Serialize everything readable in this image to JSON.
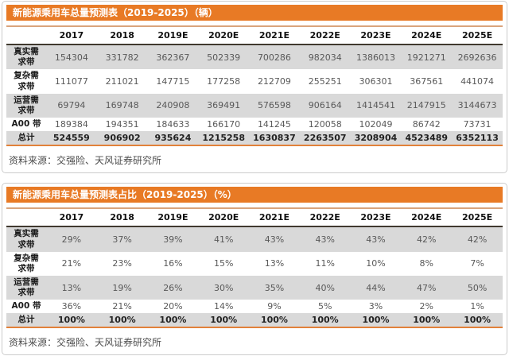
{
  "colors": {
    "accent": "#e87a25",
    "title_text": "#ffffff",
    "stripe": "#d9d9d9",
    "header_top_line": "#d9a47c",
    "header_bottom_line": "#40392f",
    "total_underline": "#e2813a",
    "value_text": "#595959",
    "source_text": "#4d4d4d"
  },
  "tables": [
    {
      "title": "新能源乘用车总量预测表（2019-2025）（辆）",
      "columns": [
        "2017",
        "2018",
        "2019E",
        "2020E",
        "2021E",
        "2022E",
        "2023E",
        "2024E",
        "2025E"
      ],
      "rows": [
        {
          "label": "真实需\n求带",
          "values": [
            "154304",
            "331782",
            "362367",
            "502339",
            "700286",
            "982034",
            "1386013",
            "1921271",
            "2692636"
          ]
        },
        {
          "label": "复杂需\n求带",
          "values": [
            "111077",
            "211021",
            "147715",
            "177258",
            "212709",
            "255251",
            "306301",
            "367561",
            "441074"
          ]
        },
        {
          "label": "运营需\n求带",
          "values": [
            "69794",
            "169748",
            "240908",
            "369491",
            "576598",
            "906164",
            "1414541",
            "2147915",
            "3144673"
          ]
        },
        {
          "label": "A00 带",
          "values": [
            "189384",
            "194351",
            "184633",
            "166170",
            "141245",
            "120058",
            "102049",
            "86742",
            "73731"
          ]
        },
        {
          "label": "总计",
          "is_total": true,
          "values": [
            "524559",
            "906902",
            "935624",
            "1215258",
            "1630837",
            "2263507",
            "3208904",
            "4523489",
            "6352113"
          ]
        }
      ],
      "source": "资料来源：交强险、天风证券研究所"
    },
    {
      "title": "新能源乘用车总量预测表占比（2019-2025）（%）",
      "columns": [
        "2017",
        "2018",
        "2019E",
        "2020E",
        "2021E",
        "2022E",
        "2023E",
        "2024E",
        "2025E"
      ],
      "rows": [
        {
          "label": "真实需\n求带",
          "values": [
            "29%",
            "37%",
            "39%",
            "41%",
            "43%",
            "43%",
            "43%",
            "42%",
            "42%"
          ]
        },
        {
          "label": "复杂需\n求带",
          "values": [
            "21%",
            "23%",
            "16%",
            "15%",
            "13%",
            "11%",
            "10%",
            "8%",
            "7%"
          ]
        },
        {
          "label": "运营需\n求带",
          "values": [
            "13%",
            "19%",
            "26%",
            "30%",
            "35%",
            "40%",
            "44%",
            "47%",
            "50%"
          ]
        },
        {
          "label": "A00 带",
          "values": [
            "36%",
            "21%",
            "20%",
            "14%",
            "9%",
            "5%",
            "3%",
            "2%",
            "1%"
          ]
        },
        {
          "label": "总计",
          "is_total": true,
          "values": [
            "100%",
            "100%",
            "100%",
            "100%",
            "100%",
            "100%",
            "100%",
            "100%",
            "100%"
          ]
        }
      ],
      "source": "资料来源：交强险、天风证券研究所"
    }
  ]
}
